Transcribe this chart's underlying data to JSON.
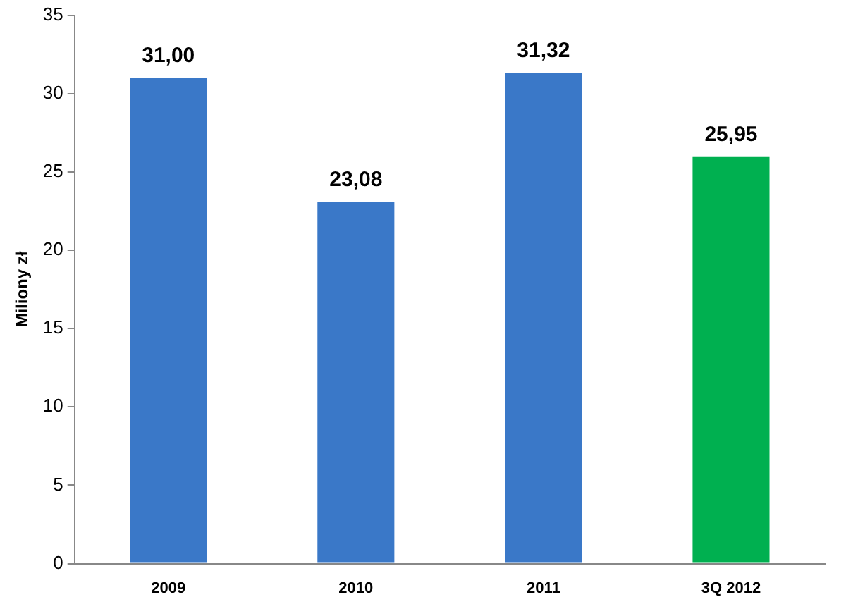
{
  "chart_data": {
    "type": "bar",
    "ylabel": "Miliony zł",
    "categories": [
      "2009",
      "2010",
      "2011",
      "3Q 2012"
    ],
    "values": [
      31.0,
      23.08,
      31.32,
      25.95
    ],
    "colors": [
      "#3a78c8",
      "#3a78c8",
      "#3a78c8",
      "#00b050"
    ],
    "value_labels": [
      "31,00",
      "23,08",
      "31,32",
      "25,95"
    ],
    "ylim": [
      0,
      35
    ],
    "yticks": [
      0,
      5,
      10,
      15,
      20,
      25,
      30,
      35
    ],
    "grid": false,
    "legend": false
  }
}
